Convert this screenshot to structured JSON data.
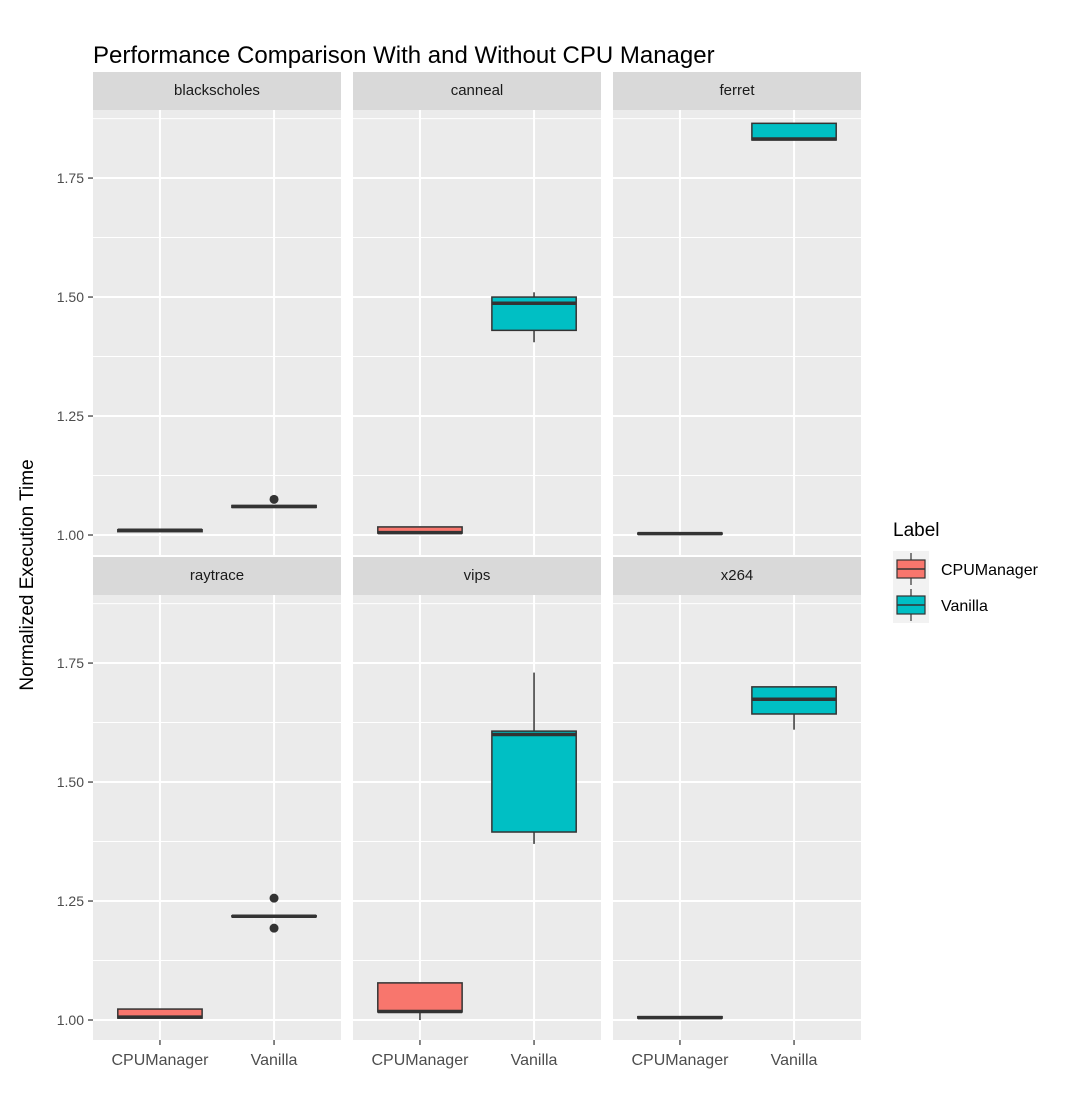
{
  "chart_data": {
    "type": "box",
    "title": "Performance Comparison With and Without CPU Manager",
    "xlabel": "",
    "ylabel": "Normalized Execution Time",
    "categories": [
      "CPUManager",
      "Vanilla"
    ],
    "ylim": [
      0.958,
      1.893
    ],
    "yticks": [
      1.0,
      1.25,
      1.5,
      1.75
    ],
    "ytick_labels": [
      "1.00",
      "1.25",
      "1.50",
      "1.75"
    ],
    "grid": true,
    "legend": {
      "title": "Label",
      "placement": "right",
      "entries": [
        {
          "name": "CPUManager",
          "color": "#F8766D"
        },
        {
          "name": "Vanilla",
          "color": "#00BFC4"
        }
      ]
    },
    "facets": [
      {
        "name": "blackscholes",
        "boxes": [
          {
            "label": "CPUManager",
            "min": 1.007,
            "q1": 1.007,
            "median": 1.01,
            "q3": 1.011,
            "max": 1.011,
            "outliers": []
          },
          {
            "label": "Vanilla",
            "min": 1.058,
            "q1": 1.058,
            "median": 1.06,
            "q3": 1.062,
            "max": 1.062,
            "outliers": [
              1.075
            ]
          }
        ]
      },
      {
        "name": "canneal",
        "boxes": [
          {
            "label": "CPUManager",
            "min": 1.003,
            "q1": 1.004,
            "median": 1.005,
            "q3": 1.017,
            "max": 1.018,
            "outliers": []
          },
          {
            "label": "Vanilla",
            "min": 1.405,
            "q1": 1.43,
            "median": 1.487,
            "q3": 1.5,
            "max": 1.51,
            "outliers": []
          }
        ]
      },
      {
        "name": "ferret",
        "boxes": [
          {
            "label": "CPUManager",
            "min": 1.002,
            "q1": 1.002,
            "median": 1.003,
            "q3": 1.004,
            "max": 1.004,
            "outliers": []
          },
          {
            "label": "Vanilla",
            "min": 1.83,
            "q1": 1.83,
            "median": 1.832,
            "q3": 1.865,
            "max": 1.865,
            "outliers": []
          }
        ]
      },
      {
        "name": "raytrace",
        "boxes": [
          {
            "label": "CPUManager",
            "min": 1.004,
            "q1": 1.004,
            "median": 1.006,
            "q3": 1.023,
            "max": 1.023,
            "outliers": []
          },
          {
            "label": "Vanilla",
            "min": 1.217,
            "q1": 1.217,
            "median": 1.218,
            "q3": 1.219,
            "max": 1.219,
            "outliers": [
              1.256,
              1.193
            ]
          }
        ]
      },
      {
        "name": "vips",
        "boxes": [
          {
            "label": "CPUManager",
            "min": 1.0,
            "q1": 1.017,
            "median": 1.018,
            "q3": 1.078,
            "max": 1.078,
            "outliers": []
          },
          {
            "label": "Vanilla",
            "min": 1.37,
            "q1": 1.395,
            "median": 1.6,
            "q3": 1.607,
            "max": 1.73,
            "outliers": []
          }
        ]
      },
      {
        "name": "x264",
        "boxes": [
          {
            "label": "CPUManager",
            "min": 1.004,
            "q1": 1.004,
            "median": 1.005,
            "q3": 1.007,
            "max": 1.007,
            "outliers": []
          },
          {
            "label": "Vanilla",
            "min": 1.61,
            "q1": 1.643,
            "median": 1.674,
            "q3": 1.7,
            "max": 1.7,
            "outliers": []
          }
        ]
      }
    ]
  }
}
